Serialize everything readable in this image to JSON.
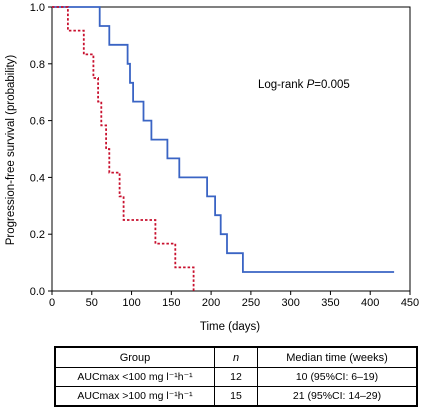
{
  "chart_data": {
    "type": "line",
    "subtype": "kaplan-meier-step",
    "xlabel": "Time (days)",
    "ylabel": "Progression-free survival (probability)",
    "xlim": [
      0,
      450
    ],
    "ylim": [
      0,
      1.0
    ],
    "x_ticks": [
      "0",
      "50",
      "100",
      "150",
      "200",
      "250",
      "300",
      "350",
      "400",
      "450"
    ],
    "y_ticks": [
      "0.0",
      "0.2",
      "0.4",
      "0.6",
      "0.8",
      "1.0"
    ],
    "annotation": {
      "prefix": "Log-rank ",
      "stat": "P",
      "value": "=0.005"
    },
    "series": [
      {
        "style": "solid",
        "color": "#3a64c4",
        "points": [
          [
            0,
            1.0
          ],
          [
            60,
            1.0
          ],
          [
            60,
            0.933
          ],
          [
            72,
            0.933
          ],
          [
            72,
            0.867
          ],
          [
            95,
            0.867
          ],
          [
            95,
            0.8
          ],
          [
            98,
            0.8
          ],
          [
            98,
            0.733
          ],
          [
            102,
            0.733
          ],
          [
            102,
            0.667
          ],
          [
            115,
            0.667
          ],
          [
            115,
            0.6
          ],
          [
            125,
            0.6
          ],
          [
            125,
            0.533
          ],
          [
            145,
            0.533
          ],
          [
            145,
            0.467
          ],
          [
            160,
            0.467
          ],
          [
            160,
            0.4
          ],
          [
            195,
            0.4
          ],
          [
            195,
            0.333
          ],
          [
            205,
            0.333
          ],
          [
            205,
            0.267
          ],
          [
            212,
            0.267
          ],
          [
            212,
            0.2
          ],
          [
            220,
            0.2
          ],
          [
            220,
            0.133
          ],
          [
            240,
            0.133
          ],
          [
            240,
            0.067
          ],
          [
            430,
            0.067
          ]
        ]
      },
      {
        "style": "dashed",
        "color": "#c8102e",
        "points": [
          [
            0,
            1.0
          ],
          [
            20,
            1.0
          ],
          [
            20,
            0.917
          ],
          [
            40,
            0.917
          ],
          [
            40,
            0.833
          ],
          [
            52,
            0.833
          ],
          [
            52,
            0.75
          ],
          [
            58,
            0.75
          ],
          [
            58,
            0.667
          ],
          [
            62,
            0.667
          ],
          [
            62,
            0.583
          ],
          [
            68,
            0.583
          ],
          [
            68,
            0.5
          ],
          [
            72,
            0.5
          ],
          [
            72,
            0.417
          ],
          [
            85,
            0.417
          ],
          [
            85,
            0.333
          ],
          [
            90,
            0.333
          ],
          [
            90,
            0.25
          ],
          [
            130,
            0.25
          ],
          [
            130,
            0.167
          ],
          [
            155,
            0.167
          ],
          [
            155,
            0.083
          ],
          [
            178,
            0.083
          ],
          [
            178,
            0.0
          ]
        ]
      }
    ]
  },
  "table": {
    "headers": {
      "group": "Group",
      "n": "n",
      "median": "Median time (weeks)"
    },
    "rows": [
      {
        "group": "AUCmax <100 mg l⁻¹h⁻¹",
        "n": "12",
        "median": "10 (95%CI: 6–19)"
      },
      {
        "group": "AUCmax >100 mg l⁻¹h⁻¹",
        "n": "15",
        "median": "21 (95%CI: 14–29)"
      }
    ]
  }
}
